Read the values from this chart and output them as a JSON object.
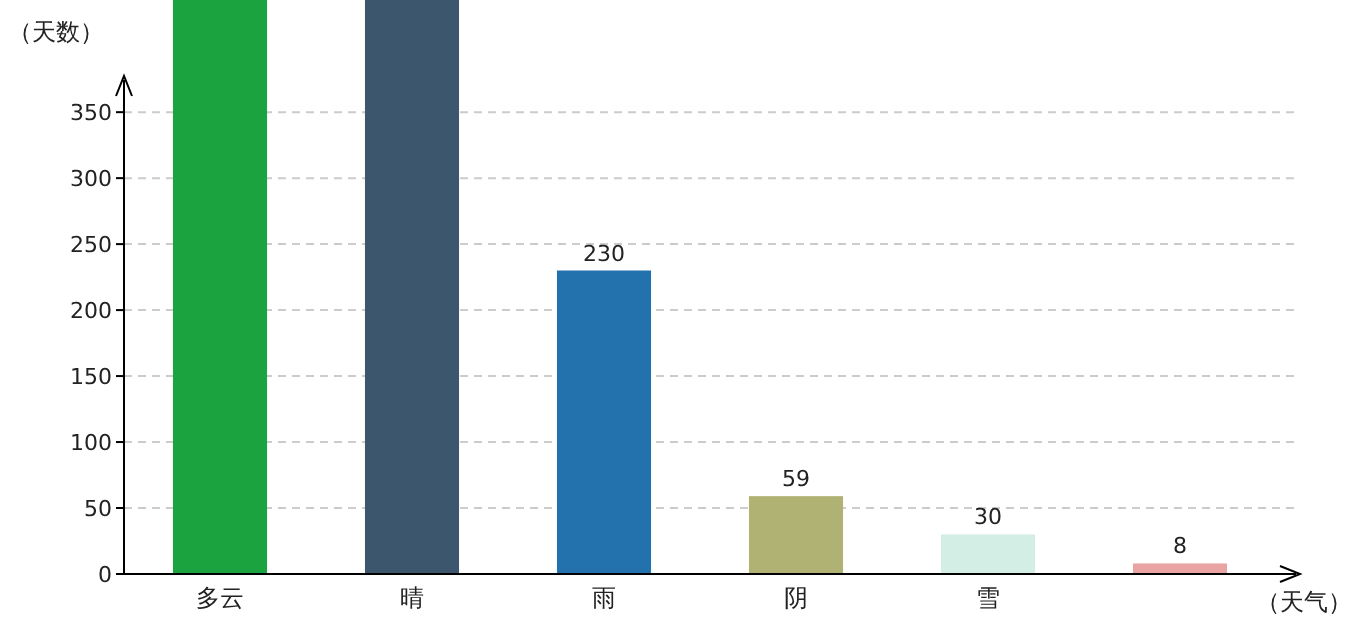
{
  "chart_data": {
    "type": "bar",
    "ylabel": "（天数）",
    "xlabel": "（天气）",
    "categories": [
      "多云",
      "晴",
      "雨",
      "阴",
      "雪",
      null
    ],
    "values": [
      435,
      435,
      230,
      59,
      30,
      8
    ],
    "colors": [
      "#1ba33f",
      "#3c566d",
      "#2372ad",
      "#b0b274",
      "#d3eee5",
      "#eaa3a3"
    ],
    "value_labels": [
      null,
      null,
      "230",
      "59",
      "30",
      "8"
    ],
    "ylim": [
      0,
      435
    ],
    "yticks": [
      0,
      50,
      100,
      150,
      200,
      250,
      300,
      350
    ],
    "grid": "y"
  }
}
